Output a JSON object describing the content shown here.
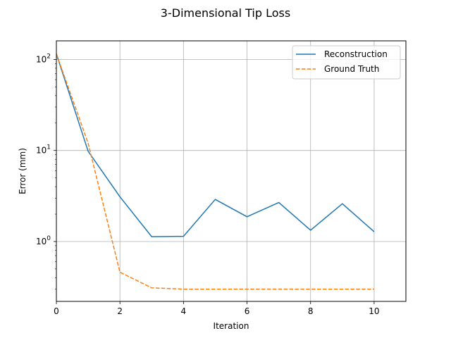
{
  "chart_data": {
    "type": "line",
    "title": "3-Dimensional Tip Loss",
    "xlabel": "Iteration",
    "ylabel": "Error (mm)",
    "xlim": [
      0,
      11
    ],
    "ylim": [
      0.22,
      160
    ],
    "yscale": "log",
    "grid": true,
    "legend_position": "top-right",
    "xticks": [
      0,
      2,
      4,
      6,
      8,
      10
    ],
    "xtick_labels": [
      "0",
      "2",
      "4",
      "6",
      "8",
      "10"
    ],
    "yticks": [
      1,
      10,
      100
    ],
    "ytick_labels": [
      "10^0",
      "10^1",
      "10^2"
    ],
    "x": [
      0,
      1,
      2,
      3,
      4,
      5,
      6,
      7,
      8,
      9,
      10
    ],
    "series": [
      {
        "name": "Reconstruction",
        "color": "#1f77b4",
        "style": "solid",
        "values": [
          115,
          9.8,
          3.1,
          1.13,
          1.14,
          2.9,
          1.87,
          2.68,
          1.33,
          2.6,
          1.28
        ]
      },
      {
        "name": "Ground Truth",
        "color": "#ff7f0e",
        "style": "dashed",
        "values": [
          115,
          12.0,
          0.46,
          0.31,
          0.3,
          0.3,
          0.3,
          0.3,
          0.3,
          0.3,
          0.3
        ]
      }
    ]
  }
}
